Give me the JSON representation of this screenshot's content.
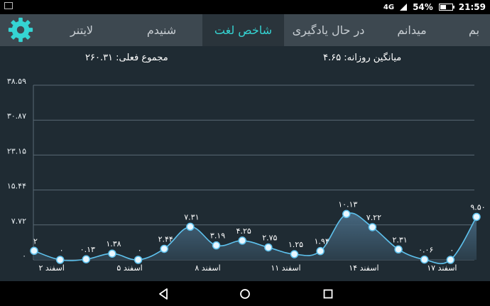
{
  "status": {
    "network": "4G",
    "battery": "54%",
    "battery_level": 0.54,
    "time": "21:59"
  },
  "tabs": [
    {
      "label": "لایتنر",
      "active": false
    },
    {
      "label": "شنیدم",
      "active": false
    },
    {
      "label": "شاخص لغت",
      "active": true
    },
    {
      "label": "در حال یادگیری",
      "active": false
    },
    {
      "label": "میدانم",
      "active": false
    },
    {
      "label": "بم",
      "active": false
    }
  ],
  "summary": {
    "total": "مجموع فعلی: ۲۶۰.۳۱",
    "daily_average": "میانگین روزانه: ۴.۶۵"
  },
  "colors": {
    "accent": "#35d4d3",
    "line": "#5ec2ee",
    "tabbar": "#3d4850",
    "background": "#1f2b33"
  },
  "chart_data": {
    "type": "area",
    "y_ticks": [
      "۳۸.۵۹",
      "۳۰.۸۷",
      "۲۳.۱۵",
      "۱۵.۴۴",
      "۷.۷۲",
      "۰"
    ],
    "ylim": [
      0,
      38.59
    ],
    "x_tick_labels": [
      {
        "index": 1,
        "label": "۲ اسفند"
      },
      {
        "index": 4,
        "label": "۵ اسفند"
      },
      {
        "index": 7,
        "label": "۸ اسفند"
      },
      {
        "index": 10,
        "label": "۱۱ اسفند"
      },
      {
        "index": 13,
        "label": "۱۴ اسفند"
      },
      {
        "index": 16,
        "label": "۱۷ اسفند"
      }
    ],
    "values": [
      2,
      0,
      0.13,
      1.38,
      0,
      2.44,
      7.31,
      3.19,
      4.25,
      2.75,
      1.25,
      1.94,
      10.13,
      7.22,
      2.31,
      0.06,
      0,
      9.5
    ],
    "value_labels": [
      "۲",
      "۰",
      "۰.۱۳",
      "۱.۳۸",
      "۰",
      "۲.۴۴",
      "۷.۳۱",
      "۳.۱۹",
      "۴.۲۵",
      "۲.۷۵",
      "۱.۲۵",
      "۱.۹۴",
      "۱۰.۱۳",
      "۷.۲۲",
      "۲.۳۱",
      "۰.۰۶",
      "۰",
      "۹.۵۰"
    ]
  }
}
